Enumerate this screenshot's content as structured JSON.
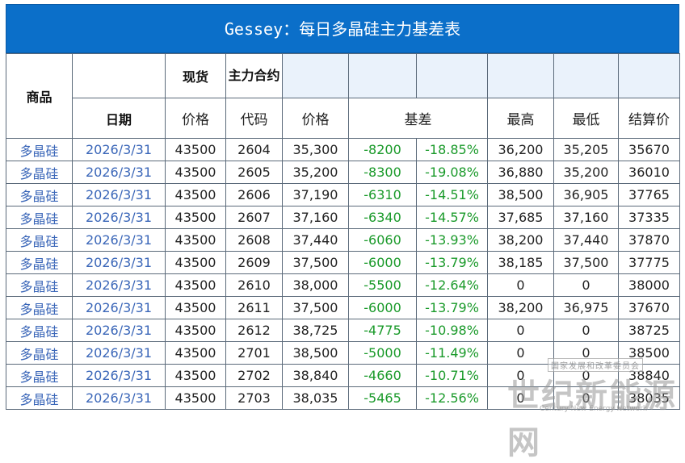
{
  "title": "Gessey：每日多晶硅主力基差表",
  "headers": {
    "product": "商品",
    "spot": "现货",
    "main_contract": "主力合约",
    "date": "日期",
    "price": "价格",
    "code": "代码",
    "futures_price": "价格",
    "basis": "基差",
    "high": "最高",
    "low": "最低",
    "settle": "结算价"
  },
  "rows": [
    {
      "product": "多晶硅",
      "date": "2026/3/31",
      "spot": "43500",
      "code": "2604",
      "price": "35,300",
      "basis": "-8200",
      "basis_pct": "-18.85%",
      "high": "36,200",
      "low": "35,205",
      "settle": "35670"
    },
    {
      "product": "多晶硅",
      "date": "2026/3/31",
      "spot": "43500",
      "code": "2605",
      "price": "35,200",
      "basis": "-8300",
      "basis_pct": "-19.08%",
      "high": "36,880",
      "low": "35,200",
      "settle": "36010"
    },
    {
      "product": "多晶硅",
      "date": "2026/3/31",
      "spot": "43500",
      "code": "2606",
      "price": "37,190",
      "basis": "-6310",
      "basis_pct": "-14.51%",
      "high": "38,500",
      "low": "36,905",
      "settle": "37765"
    },
    {
      "product": "多晶硅",
      "date": "2026/3/31",
      "spot": "43500",
      "code": "2607",
      "price": "37,160",
      "basis": "-6340",
      "basis_pct": "-14.57%",
      "high": "37,685",
      "low": "37,160",
      "settle": "37335"
    },
    {
      "product": "多晶硅",
      "date": "2026/3/31",
      "spot": "43500",
      "code": "2608",
      "price": "37,440",
      "basis": "-6060",
      "basis_pct": "-13.93%",
      "high": "38,200",
      "low": "37,440",
      "settle": "37870"
    },
    {
      "product": "多晶硅",
      "date": "2026/3/31",
      "spot": "43500",
      "code": "2609",
      "price": "37,500",
      "basis": "-6000",
      "basis_pct": "-13.79%",
      "high": "38,185",
      "low": "37,500",
      "settle": "37775"
    },
    {
      "product": "多晶硅",
      "date": "2026/3/31",
      "spot": "43500",
      "code": "2610",
      "price": "38,000",
      "basis": "-5500",
      "basis_pct": "-12.64%",
      "high": "0",
      "low": "0",
      "settle": "38000"
    },
    {
      "product": "多晶硅",
      "date": "2026/3/31",
      "spot": "43500",
      "code": "2611",
      "price": "37,500",
      "basis": "-6000",
      "basis_pct": "-13.79%",
      "high": "38,200",
      "low": "36,975",
      "settle": "37670"
    },
    {
      "product": "多晶硅",
      "date": "2026/3/31",
      "spot": "43500",
      "code": "2612",
      "price": "38,725",
      "basis": "-4775",
      "basis_pct": "-10.98%",
      "high": "0",
      "low": "0",
      "settle": "38725"
    },
    {
      "product": "多晶硅",
      "date": "2026/3/31",
      "spot": "43500",
      "code": "2701",
      "price": "38,500",
      "basis": "-5000",
      "basis_pct": "-11.49%",
      "high": "0",
      "low": "0",
      "settle": "38500"
    },
    {
      "product": "多晶硅",
      "date": "2026/3/31",
      "spot": "43500",
      "code": "2702",
      "price": "38,840",
      "basis": "-4660",
      "basis_pct": "-10.71%",
      "high": "0",
      "low": "0",
      "settle": "38840"
    },
    {
      "product": "多晶硅",
      "date": "2026/3/31",
      "spot": "43500",
      "code": "2703",
      "price": "38,035",
      "basis": "-5465",
      "basis_pct": "-12.56%",
      "high": "0",
      "low": "0",
      "settle": "38035"
    }
  ],
  "watermark": {
    "top": "国家发展和改革委员会",
    "main": "世纪新能源网",
    "sub": "Century New Energy Network"
  },
  "colors": {
    "title_bg": "#0b6fc9",
    "header_light": "#eaf2fb",
    "product_text": "#3a66b8",
    "basis_text": "#1a9a2a"
  }
}
